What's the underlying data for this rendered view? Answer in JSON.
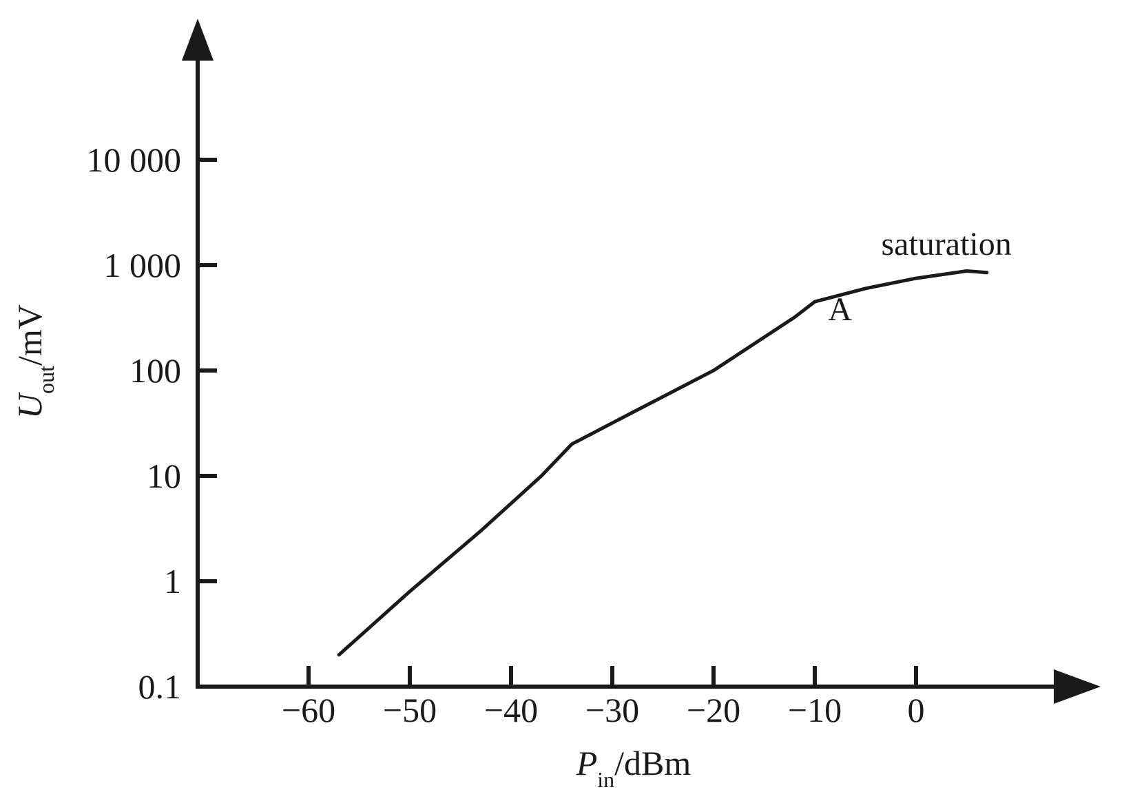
{
  "chart_data": {
    "type": "line",
    "title": "",
    "xlabel": {
      "main": "P",
      "sub": "in",
      "unit": "/dBm"
    },
    "ylabel": {
      "main": "U",
      "sub": "out",
      "unit": "/mV"
    },
    "xlim": [
      -70,
      14
    ],
    "ylim": [
      0.1,
      10000
    ],
    "yscale": "log",
    "grid": false,
    "legend": "none",
    "x_ticks": [
      -60,
      -50,
      -40,
      -30,
      -20,
      -10,
      0
    ],
    "x_tick_labels": [
      "−60",
      "−50",
      "−40",
      "−30",
      "−20",
      "−10",
      "0"
    ],
    "y_ticks": [
      0.1,
      1,
      10,
      100,
      1000,
      10000
    ],
    "y_tick_labels": [
      "0.1",
      "1",
      "10",
      "100",
      "1 000",
      "10 000"
    ],
    "series": [
      {
        "color": "#1a1a1a",
        "x": [
          -57,
          -50,
          -43,
          -37,
          -34,
          -28,
          -20,
          -12,
          -10,
          -5,
          0,
          5,
          7
        ],
        "y": [
          0.2,
          0.8,
          3,
          10,
          20,
          40,
          100,
          320,
          450,
          600,
          750,
          880,
          850
        ]
      }
    ],
    "annotations": [
      {
        "text": "A",
        "x": -7.5,
        "y": 300
      },
      {
        "text": "saturation",
        "x": 3,
        "y": 1250
      }
    ],
    "colors": {
      "axis": "#1a1a1a",
      "line": "#1a1a1a",
      "background": "#ffffff"
    }
  }
}
